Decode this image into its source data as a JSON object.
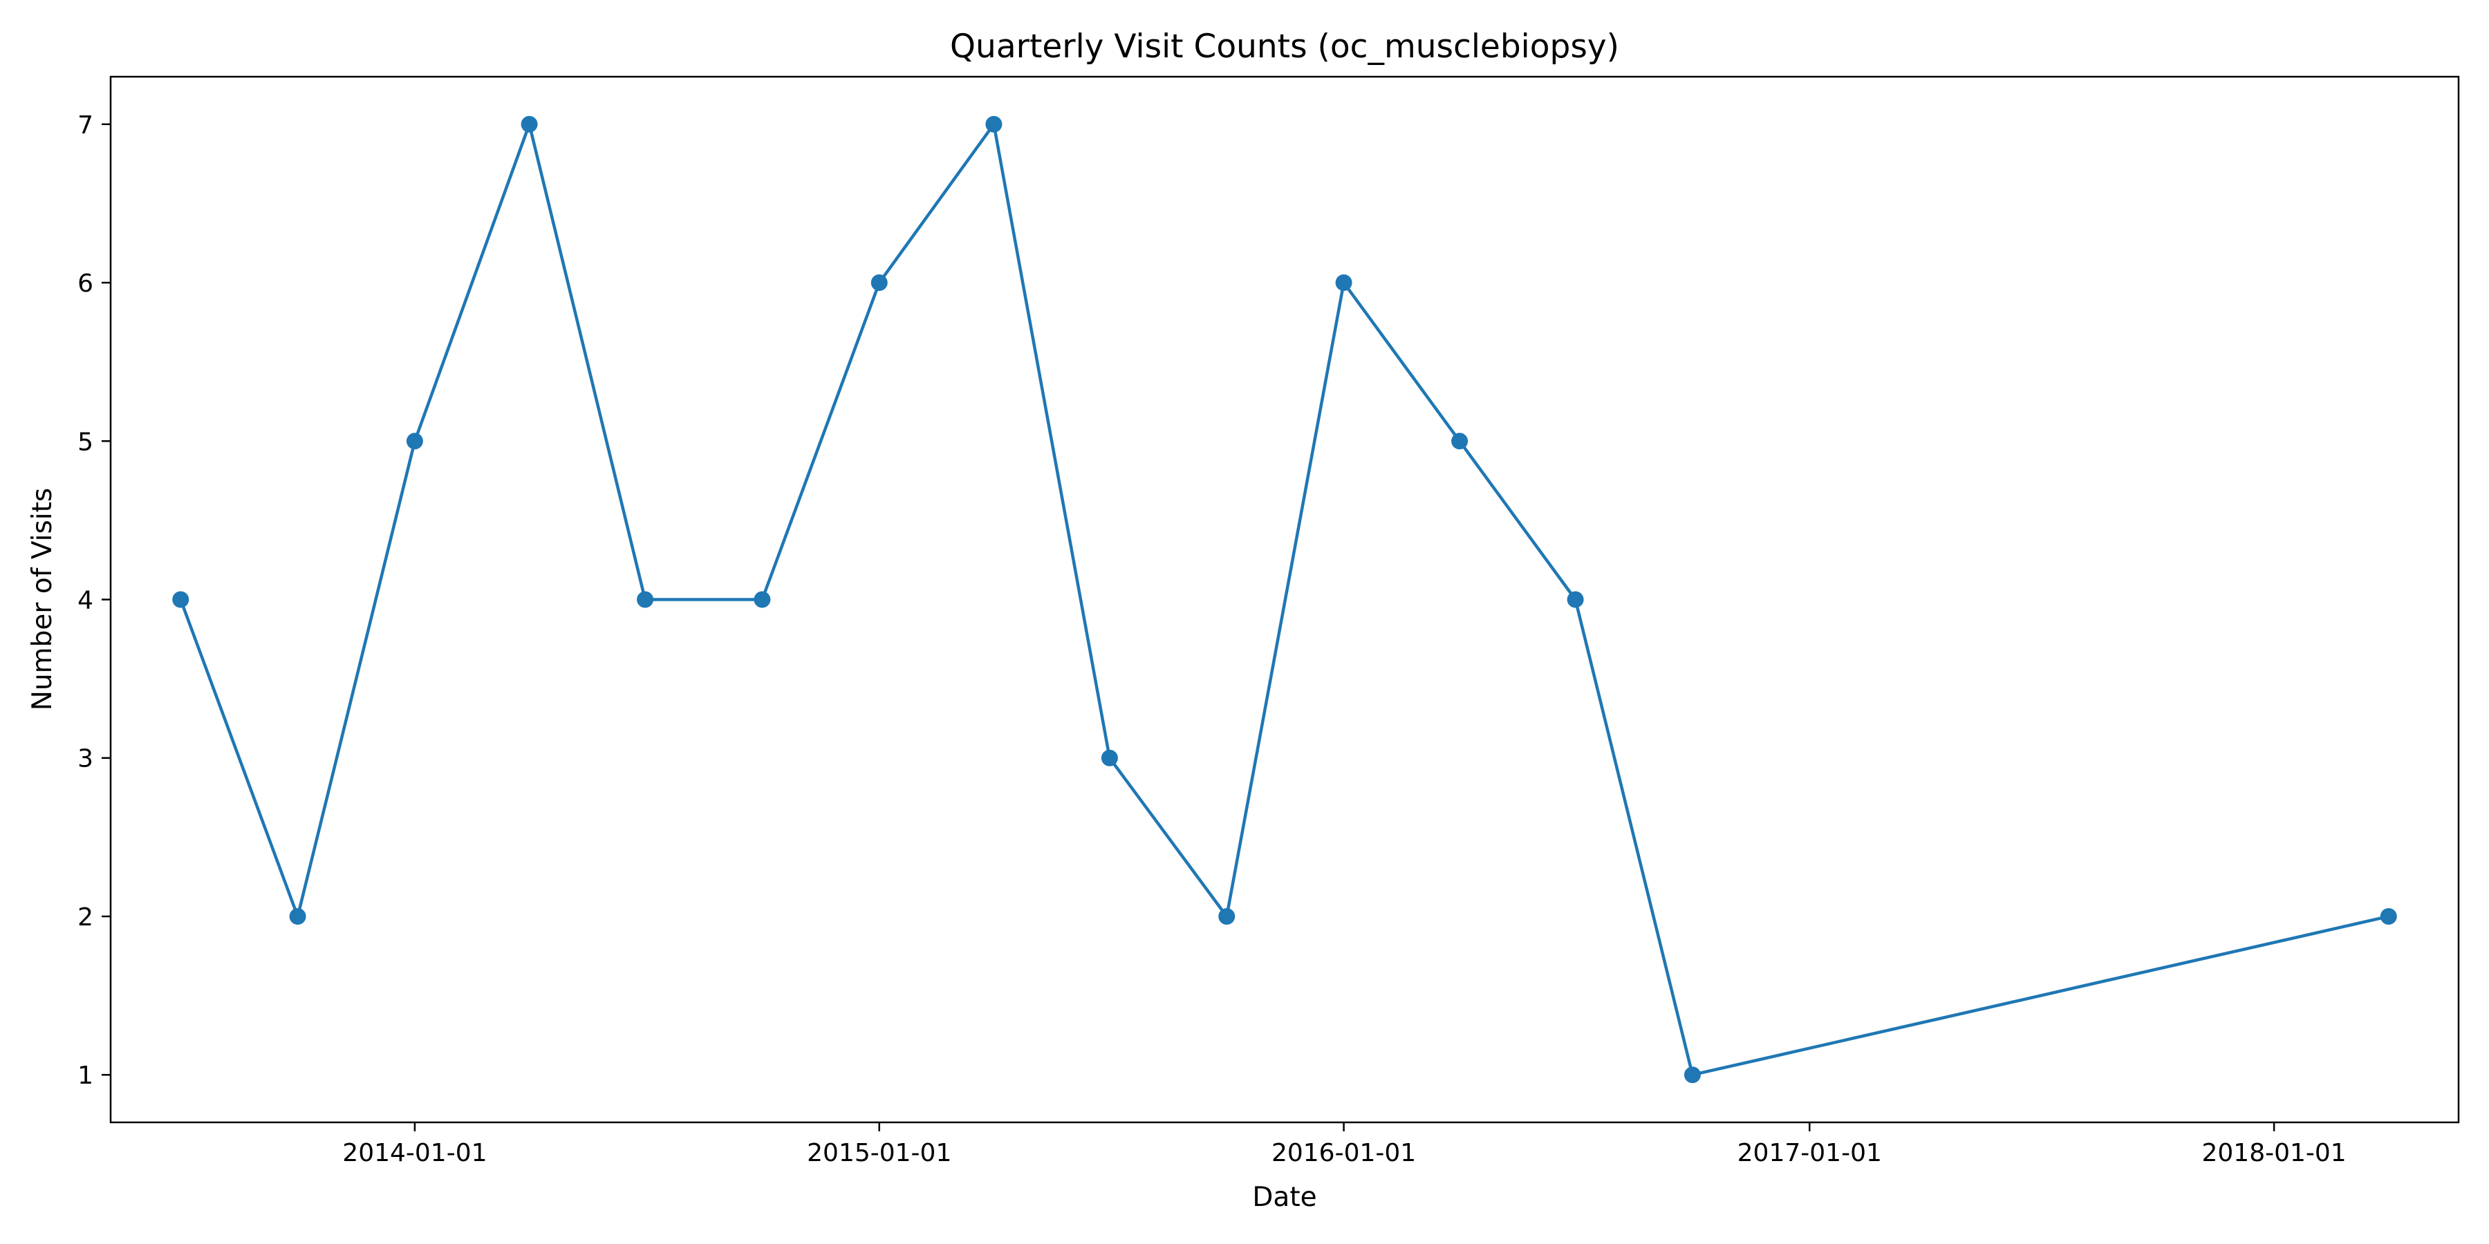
{
  "chart_data": {
    "type": "line",
    "title": "Quarterly Visit Counts (oc_musclebiopsy)",
    "xlabel": "Date",
    "ylabel": "Number of Visits",
    "x_type": "date",
    "x": [
      "2013-07-01",
      "2013-10-01",
      "2014-01-01",
      "2014-04-01",
      "2014-07-01",
      "2014-10-01",
      "2015-01-01",
      "2015-04-01",
      "2015-07-01",
      "2015-10-01",
      "2016-01-01",
      "2016-04-01",
      "2016-07-01",
      "2016-10-01",
      "2018-04-01"
    ],
    "series": [
      {
        "name": "",
        "values": [
          4,
          2,
          5,
          7,
          4,
          4,
          6,
          7,
          3,
          2,
          6,
          5,
          4,
          1,
          2
        ],
        "color": "#1f77b4",
        "marker": "circle"
      }
    ],
    "xlim": [
      "2013-05-07",
      "2018-05-26"
    ],
    "ylim": [
      0.7,
      7.3
    ],
    "x_ticks": [
      "2014-01-01",
      "2015-01-01",
      "2016-01-01",
      "2017-01-01",
      "2018-01-01"
    ],
    "y_ticks": [
      1,
      2,
      3,
      4,
      5,
      6,
      7
    ],
    "grid": false,
    "legend": "none"
  }
}
